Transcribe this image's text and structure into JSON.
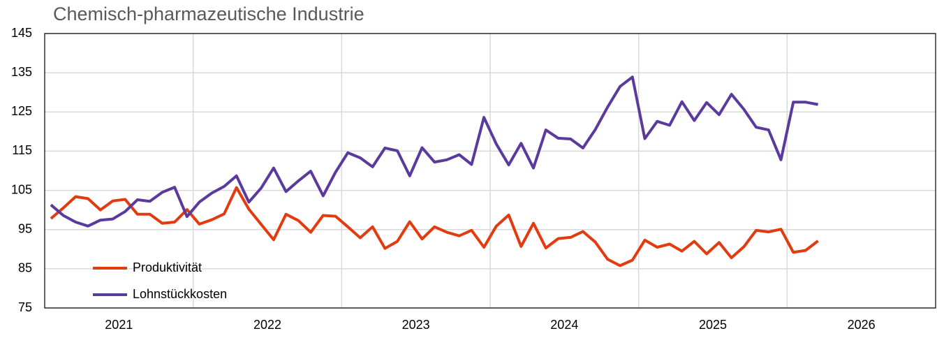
{
  "chart_data": {
    "type": "line",
    "title": "Chemisch-pharmazeutische Industrie",
    "categories": [
      null,
      null,
      null,
      null,
      null,
      null,
      "2021",
      null,
      null,
      null,
      null,
      null,
      null,
      null,
      null,
      null,
      null,
      null,
      "2022",
      null,
      null,
      null,
      null,
      null,
      null,
      null,
      null,
      null,
      null,
      null,
      "2023",
      null,
      null,
      null,
      null,
      null,
      null,
      null,
      null,
      null,
      null,
      null,
      "2024",
      null,
      null,
      null,
      null,
      null,
      null,
      null,
      null,
      null,
      null,
      null,
      "2025",
      null,
      null,
      null,
      null,
      null,
      null,
      null,
      null,
      null,
      null,
      null,
      "2026",
      null,
      null,
      null,
      null,
      null
    ],
    "series": [
      {
        "name": "Produktivität",
        "color": "#e23b10",
        "values": [
          97.8,
          100.5,
          103.4,
          102.9,
          100,
          102.3,
          102.7,
          98.9,
          98.9,
          96.6,
          96.9,
          100.1,
          96.4,
          97.5,
          99,
          105.7,
          100.2,
          96.3,
          92.4,
          98.9,
          97.3,
          94.3,
          98.6,
          98.4,
          95.7,
          92.9,
          95.7,
          90.2,
          92,
          97,
          92.6,
          95.7,
          94.3,
          93.4,
          94.8,
          90.5,
          95.9,
          98.7,
          90.7,
          96.6,
          90.3,
          92.7,
          93,
          94.5,
          91.8,
          87.4,
          85.8,
          87.2,
          92.3,
          90.5,
          91.3,
          89.5,
          92,
          88.8,
          91.7,
          87.8,
          90.6,
          94.8,
          94.4,
          95.1,
          89.2,
          89.7,
          92.1,
          null,
          null,
          null,
          null,
          null,
          null,
          null,
          null,
          null
        ]
      },
      {
        "name": "Lohnstückkosten",
        "color": "#5b3a9e",
        "values": [
          101.3,
          98.6,
          96.9,
          95.9,
          97.4,
          97.7,
          99.6,
          102.6,
          102.2,
          104.5,
          105.8,
          98.3,
          102,
          104.3,
          106,
          108.7,
          102,
          105.6,
          110.7,
          104.7,
          107.4,
          109.9,
          103.6,
          109.6,
          114.6,
          113.3,
          111,
          115.8,
          115.1,
          108.7,
          115.9,
          112.2,
          112.8,
          114.1,
          111.6,
          123.6,
          116.8,
          111.5,
          117,
          110.7,
          120.4,
          118.3,
          118.1,
          115.8,
          120.5,
          126.3,
          131.5,
          133.9,
          118.2,
          122.6,
          121.6,
          127.6,
          122.8,
          127.4,
          124.3,
          129.5,
          125.7,
          121.1,
          120.4,
          112.8,
          127.5,
          127.5,
          126.9,
          null,
          null,
          null,
          null,
          null,
          null,
          null,
          null,
          null
        ]
      }
    ],
    "ylim": [
      75,
      145
    ],
    "yticks": [
      75,
      85,
      95,
      105,
      115,
      125,
      135,
      145
    ],
    "grid": true
  }
}
